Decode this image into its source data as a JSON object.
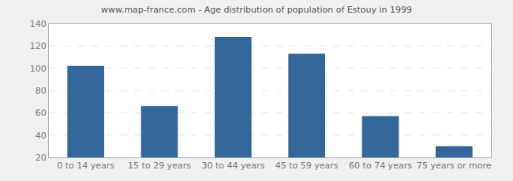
{
  "chart_data": {
    "type": "bar",
    "title": "www.map-france.com - Age distribution of population of Estouy in 1999",
    "categories": [
      "0 to 14 years",
      "15 to 29 years",
      "30 to 44 years",
      "45 to 59 years",
      "60 to 74 years",
      "75 years or more"
    ],
    "values": [
      102,
      66,
      128,
      113,
      57,
      30
    ],
    "color": "#336699",
    "ylim": [
      20,
      140
    ],
    "yticks": [
      20,
      40,
      60,
      80,
      100,
      120,
      140
    ],
    "grid": true
  }
}
